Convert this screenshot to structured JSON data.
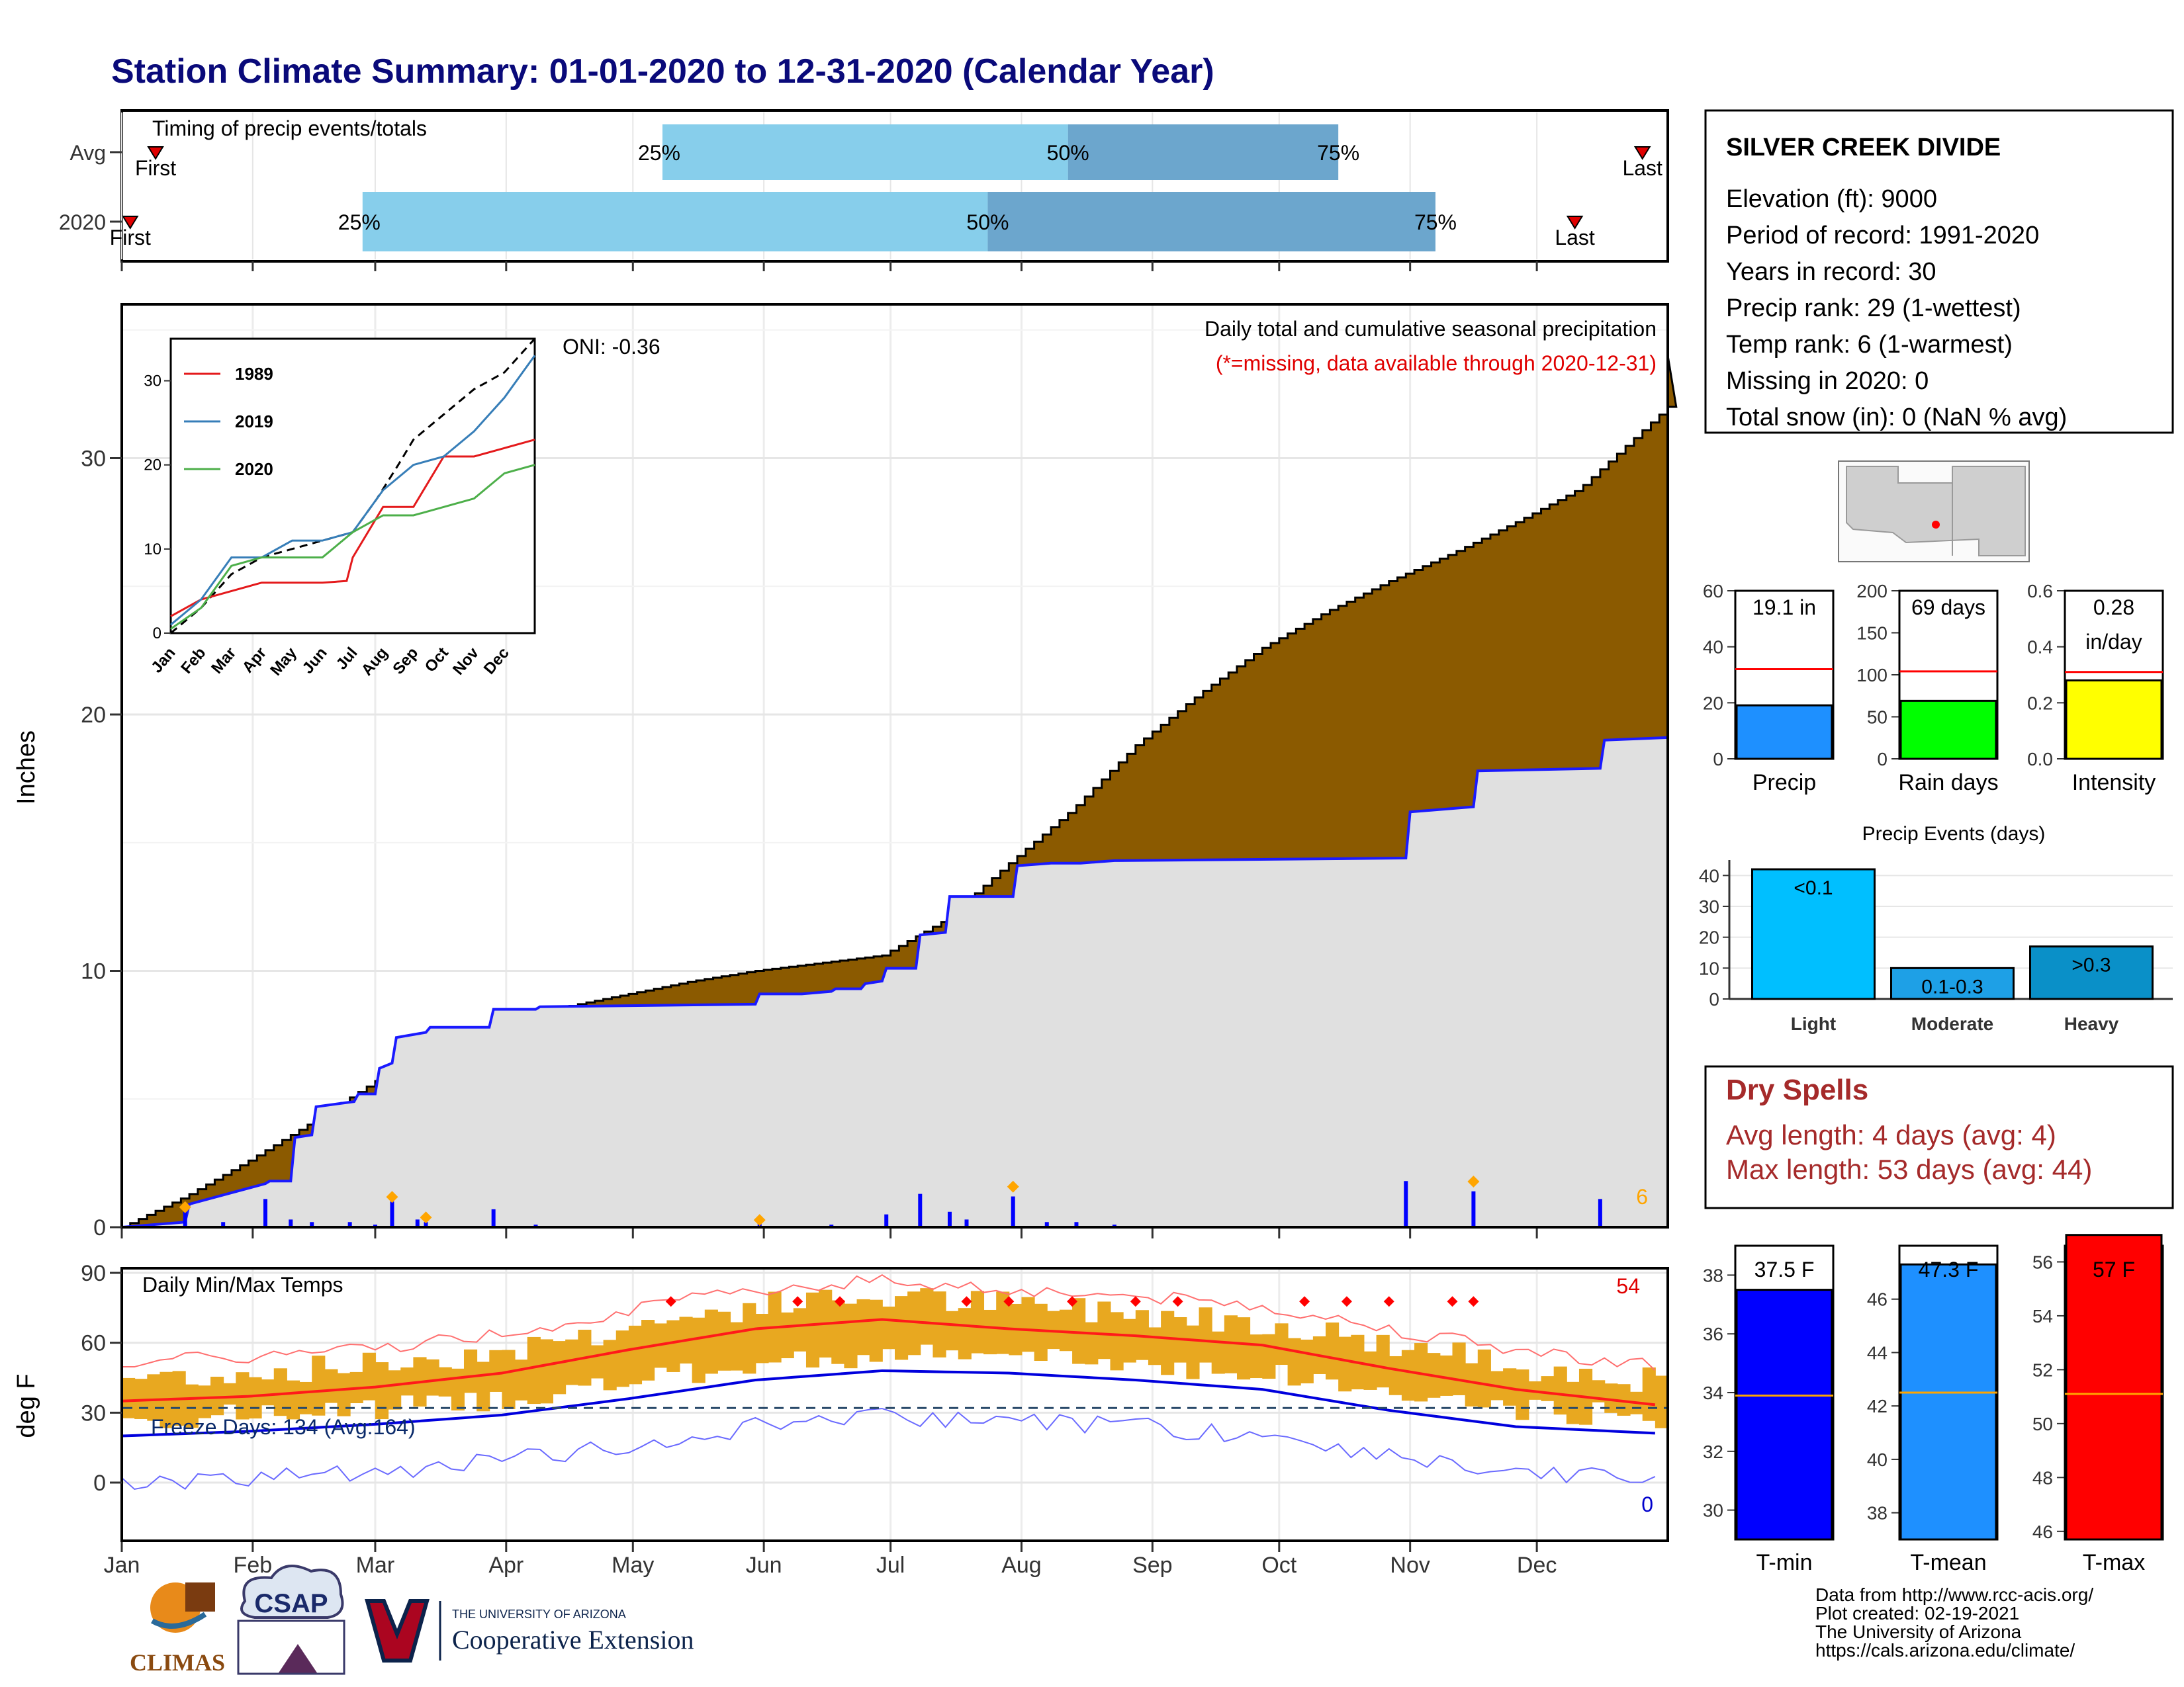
{
  "title": "Station Climate Summary: 01-01-2020 to 12-31-2020 (Calendar Year)",
  "months": [
    "Jan",
    "Feb",
    "Mar",
    "Apr",
    "May",
    "Jun",
    "Jul",
    "Aug",
    "Sep",
    "Oct",
    "Nov",
    "Dec"
  ],
  "timing": {
    "label": "Timing of precip events/totals",
    "rows": [
      {
        "name": "Avg",
        "first_label": "First",
        "last_label": "Last",
        "first_day": 8,
        "q25": "25%",
        "q50": "50%",
        "q75": "75%",
        "q25_day": 128,
        "q50_day": 224,
        "q75_day": 288,
        "last_day": 360
      },
      {
        "name": "2020",
        "first_label": "First",
        "last_label": "Last",
        "first_day": 2,
        "q25": "25%",
        "q50": "50%",
        "q75": "75%",
        "q25_day": 57,
        "q50_day": 205,
        "q75_day": 311,
        "last_day": 344
      }
    ]
  },
  "info": {
    "station": "SILVER CREEK DIVIDE",
    "lines": [
      "Elevation (ft): 9000",
      "Period of record: 1991-2020",
      "Years in record: 30",
      "Precip rank: 29 (1-wettest)",
      "Temp rank: 6 (1-warmest)",
      "Missing in 2020: 0",
      "Total snow (in): 0 (NaN % avg)"
    ]
  },
  "precip_panel": {
    "ylabel": "Inches",
    "note1": "Daily total and cumulative seasonal precipitation",
    "note2": "(*=missing, data available through 2020-12-31)",
    "oni": "ONI: -0.36",
    "count_label": "6",
    "colors": {
      "avg_fill": "#8B5A00",
      "obs_fill": "#E0E0E0",
      "obs_line": "#1a1aff",
      "bar": "#0000ff",
      "marker": "#FFA500"
    }
  },
  "inset": {
    "legend": [
      "1989",
      "2019",
      "2020"
    ],
    "colors": [
      "#e41a1c",
      "#377eb8",
      "#4daf4a"
    ],
    "months": [
      "Jan",
      "Feb",
      "Mar",
      "Apr",
      "May",
      "Jun",
      "Jul",
      "Aug",
      "Sep",
      "Oct",
      "Nov",
      "Dec"
    ]
  },
  "temp_panel": {
    "ylabel": "deg F",
    "label": "Daily Min/Max Temps",
    "freeze": "Freeze Days: 134 (Avg:164)",
    "max_count": "54",
    "min_count": "0"
  },
  "mini_bars": [
    {
      "name": "Precip",
      "label": "19.1 in",
      "value": 19.1,
      "avg": 32,
      "ylim": [
        0,
        60
      ],
      "ticks": [
        0,
        20,
        40,
        60
      ],
      "color": "#1E90FF"
    },
    {
      "name": "Rain days",
      "label": "69 days",
      "value": 69,
      "avg": 104,
      "ylim": [
        0,
        200
      ],
      "ticks": [
        0,
        50,
        100,
        150,
        200
      ],
      "color": "#00FF00"
    },
    {
      "name": "Intensity",
      "label": "0.28\nin/day",
      "value": 0.28,
      "avg": 0.31,
      "ylim": [
        0,
        0.6
      ],
      "ticks": [
        "0.0",
        "0.2",
        "0.4",
        "0.6"
      ],
      "color": "#FFFF00"
    }
  ],
  "events": {
    "title": "Precip Events (days)",
    "categories": [
      "Light",
      "Moderate",
      "Heavy"
    ],
    "labels": [
      "<0.1",
      "0.1-0.3",
      ">0.3"
    ],
    "values": [
      42,
      10,
      17
    ],
    "ticks": [
      0,
      10,
      20,
      30,
      40
    ],
    "colors": [
      "#00BFFF",
      "#1EA0E6",
      "#0A90C8"
    ]
  },
  "dry_spells": {
    "title": "Dry Spells",
    "lines": [
      "Avg length: 4 days (avg: 4)",
      "Max length: 53 days (avg: 44)"
    ]
  },
  "temp_bars": [
    {
      "name": "T-min",
      "label": "37.5 F",
      "value": 37.5,
      "avg": 33.9,
      "ylim": [
        29,
        39
      ],
      "ticks": [
        30,
        32,
        34,
        36,
        38
      ],
      "color": "#0000FF"
    },
    {
      "name": "T-mean",
      "label": "47.3 F",
      "value": 47.3,
      "avg": 42.5,
      "ylim": [
        37,
        48
      ],
      "ticks": [
        38,
        40,
        42,
        44,
        46
      ],
      "color": "#1E90FF"
    },
    {
      "name": "T-max",
      "label": "57 F",
      "value": 57,
      "avg": 51.1,
      "ylim": [
        45.7,
        56.6
      ],
      "ticks": [
        46,
        48,
        50,
        52,
        54,
        56
      ],
      "color": "#FF0000"
    }
  ],
  "footer": {
    "lines": [
      "Data from http://www.rcc-acis.org/",
      "Plot created: 02-19-2021",
      "The University of Arizona",
      "https://cals.arizona.edu/climate/"
    ],
    "logo1": "CLIMAS",
    "logo2": "CSAP",
    "logo3_top": "THE UNIVERSITY OF ARIZONA",
    "logo3_main": "Cooperative Extension"
  },
  "chart_data": {
    "type": "area",
    "title": "Station Climate Summary: 01-01-2020 to 12-31-2020 (Calendar Year)",
    "ylabel": "Inches",
    "ylim": [
      0,
      36
    ],
    "x_unit": "day of year",
    "series": [
      {
        "name": "cumulative average",
        "x": [
          0,
          15,
          30,
          45,
          60,
          75,
          90,
          105,
          120,
          135,
          150,
          165,
          180,
          195,
          210,
          225,
          240,
          255,
          270,
          285,
          300,
          315,
          330,
          345,
          366
        ],
        "values": [
          0,
          1.2,
          2.6,
          4.1,
          5.7,
          7.0,
          8.0,
          8.6,
          9.1,
          9.6,
          10.0,
          10.3,
          10.6,
          12.0,
          14.2,
          16.3,
          18.8,
          20.8,
          22.6,
          24.0,
          25.2,
          26.3,
          27.5,
          28.8,
          32.0
        ]
      },
      {
        "name": "cumulative 2020",
        "x": [
          0,
          15,
          16,
          34,
          35,
          40,
          41,
          45,
          46,
          55,
          56,
          60,
          61,
          64,
          65,
          72,
          73,
          87,
          88,
          98,
          99,
          150,
          151,
          160,
          161,
          168,
          169,
          175,
          176,
          180,
          181,
          188,
          189,
          195,
          196,
          211,
          212,
          220,
          221,
          226,
          227,
          235,
          236,
          304,
          305,
          320,
          321,
          350,
          351,
          366
        ],
        "values": [
          0,
          0.2,
          0.9,
          1.7,
          1.8,
          1.8,
          3.5,
          3.6,
          4.7,
          4.9,
          5.2,
          5.2,
          6.2,
          6.4,
          7.4,
          7.6,
          7.8,
          7.8,
          8.5,
          8.5,
          8.6,
          8.7,
          9.1,
          9.1,
          9.1,
          9.2,
          9.3,
          9.3,
          9.5,
          9.6,
          10.1,
          10.1,
          11.4,
          11.5,
          12.9,
          12.9,
          14.1,
          14.2,
          14.2,
          14.2,
          14.2,
          14.3,
          14.3,
          14.4,
          16.2,
          16.4,
          17.8,
          17.9,
          19.0,
          19.1
        ]
      }
    ],
    "daily_precip": [
      [
        15,
        0.6
      ],
      [
        24,
        0.2
      ],
      [
        34,
        1.1
      ],
      [
        40,
        0.3
      ],
      [
        45,
        0.2
      ],
      [
        54,
        0.2
      ],
      [
        60,
        0.1
      ],
      [
        64,
        1.0
      ],
      [
        70,
        0.3
      ],
      [
        72,
        0.2
      ],
      [
        88,
        0.7
      ],
      [
        98,
        0.1
      ],
      [
        151,
        0.3
      ],
      [
        168,
        0.1
      ],
      [
        181,
        0.5
      ],
      [
        189,
        1.3
      ],
      [
        196,
        0.6
      ],
      [
        200,
        0.3
      ],
      [
        211,
        1.2
      ],
      [
        219,
        0.2
      ],
      [
        226,
        0.2
      ],
      [
        235,
        0.1
      ],
      [
        304,
        1.8
      ],
      [
        320,
        1.4
      ],
      [
        350,
        1.1
      ]
    ],
    "temps": {
      "ylim": [
        -25,
        92
      ],
      "max_smooth": {
        "x": [
          0,
          30,
          60,
          90,
          120,
          150,
          180,
          210,
          240,
          270,
          300,
          330,
          365
        ],
        "values": [
          35,
          37,
          41,
          47,
          57,
          66,
          70,
          66,
          63,
          59,
          49,
          40,
          33
        ]
      },
      "min_smooth": {
        "x": [
          0,
          30,
          60,
          90,
          120,
          150,
          180,
          210,
          240,
          270,
          300,
          330,
          365
        ],
        "values": [
          20,
          22,
          25,
          29,
          36,
          44,
          48,
          47,
          44,
          40,
          31,
          24,
          21
        ]
      },
      "freeze_line": 32
    }
  }
}
